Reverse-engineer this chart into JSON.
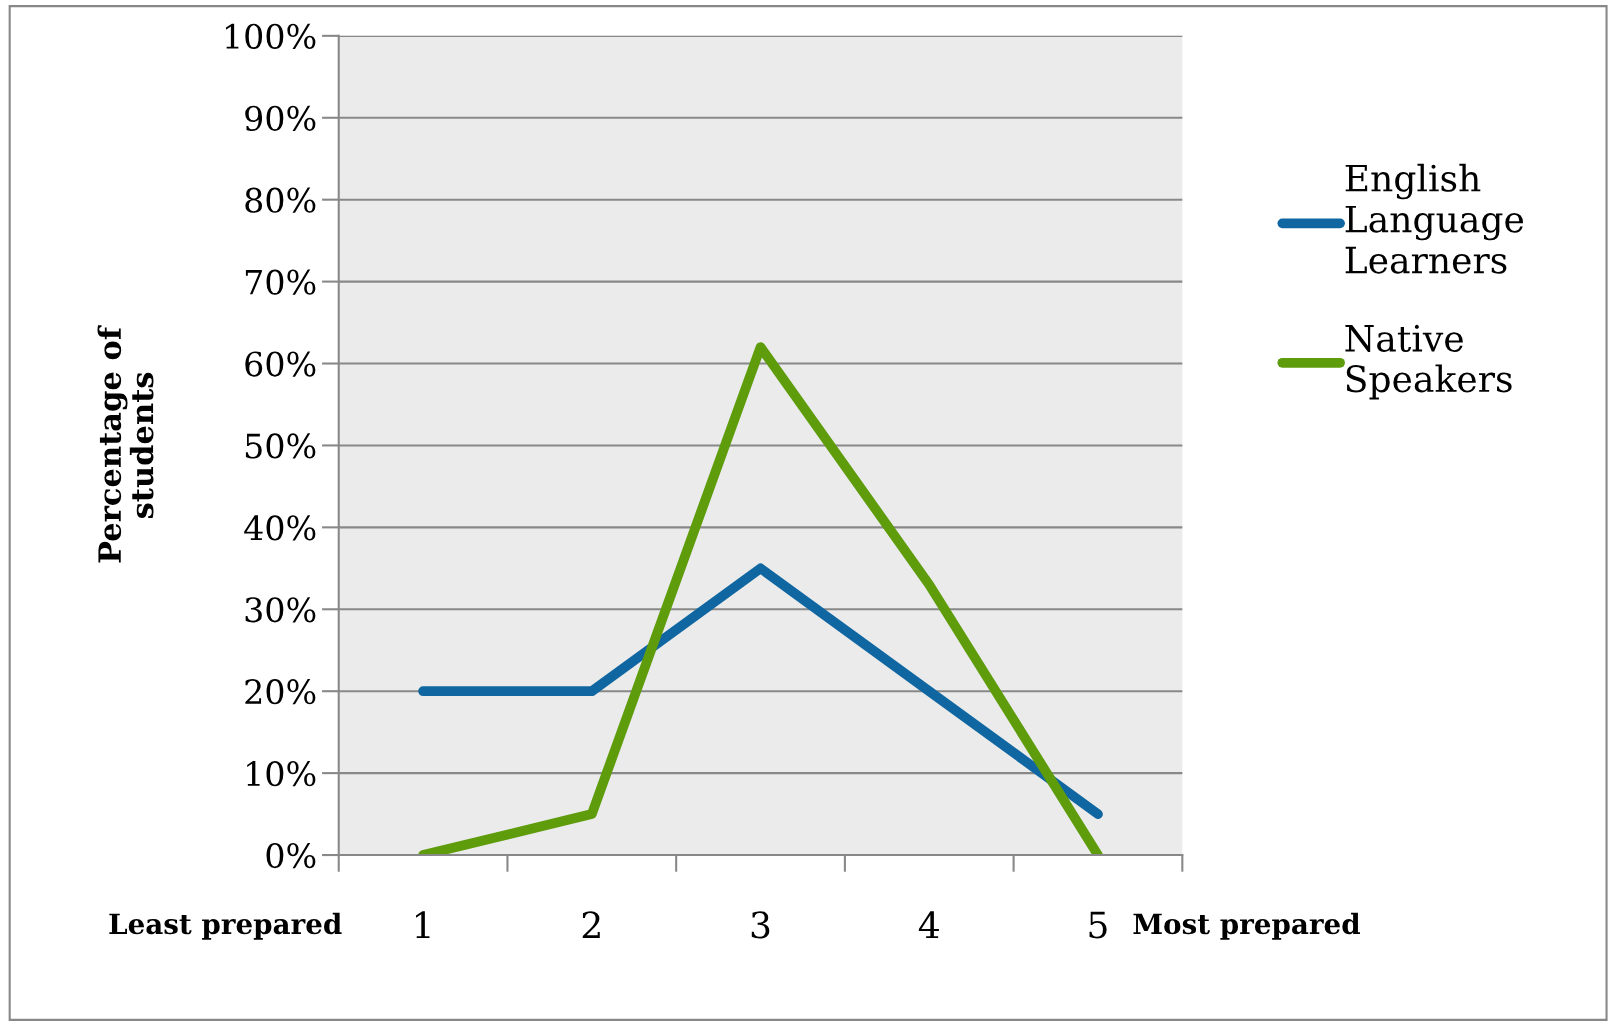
{
  "chart_data": {
    "type": "line",
    "ylabel": "Percentage of students",
    "categories": [
      "1",
      "2",
      "3",
      "4",
      "5"
    ],
    "series": [
      {
        "name": "English Language Learners",
        "color": "#1066a0",
        "values": [
          20,
          20,
          35,
          20,
          5
        ]
      },
      {
        "name": "Native Speakers",
        "color": "#5e9c0c",
        "values": [
          0,
          5,
          62,
          33,
          0
        ]
      }
    ],
    "ylim": [
      0,
      100
    ],
    "yticks": [
      {
        "value": 0,
        "label": "0%"
      },
      {
        "value": 10,
        "label": "10%"
      },
      {
        "value": 20,
        "label": "20%"
      },
      {
        "value": 30,
        "label": "30%"
      },
      {
        "value": 40,
        "label": "40%"
      },
      {
        "value": 50,
        "label": "50%"
      },
      {
        "value": 60,
        "label": "60%"
      },
      {
        "value": 70,
        "label": "70%"
      },
      {
        "value": 80,
        "label": "80%"
      },
      {
        "value": 90,
        "label": "90%"
      },
      {
        "value": 100,
        "label": "100%"
      }
    ],
    "grid": "y",
    "legend": "right",
    "marker": "none",
    "line_style": "solid",
    "annotations": [
      "Least prepared",
      "Most prepared"
    ]
  }
}
